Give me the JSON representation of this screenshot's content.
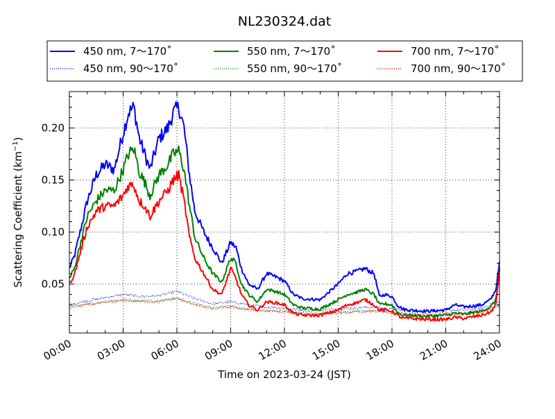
{
  "chart_data": {
    "type": "line",
    "title": "NL230324.dat",
    "xlabel": "Time on 2023-03-24 (JST)",
    "ylabel_prefix": "Scattering Coefficient (km",
    "ylabel_sup": "−1",
    "ylabel_suffix": ")",
    "xlim": [
      0,
      24
    ],
    "ylim": [
      0.003,
      0.235
    ],
    "xticks": [
      0,
      3,
      6,
      9,
      12,
      15,
      18,
      21,
      24
    ],
    "xtick_labels": [
      "00:00",
      "03:00",
      "06:00",
      "09:00",
      "12:00",
      "15:00",
      "18:00",
      "21:00",
      "24:00"
    ],
    "yticks": [
      0.05,
      0.1,
      0.15,
      0.2
    ],
    "ytick_labels": [
      "0.05",
      "0.10",
      "0.15",
      "0.20"
    ],
    "grid": true,
    "legend_position": "top, above plot",
    "series": [
      {
        "name": "450 nm, 7～170˚",
        "color": "#0000ff",
        "style": "solid",
        "x": [
          0,
          0.3,
          0.6,
          1.0,
          1.5,
          2.0,
          2.5,
          3.0,
          3.3,
          3.6,
          3.9,
          4.2,
          4.5,
          5.0,
          5.5,
          5.8,
          6.1,
          6.4,
          6.7,
          7.0,
          7.5,
          8.0,
          8.5,
          9.0,
          9.3,
          9.6,
          10.0,
          10.5,
          11.0,
          11.5,
          12.0,
          12.5,
          13.0,
          14.0,
          15.0,
          15.5,
          16.0,
          16.5,
          17.0,
          17.3,
          17.6,
          18.0,
          18.3,
          18.6,
          19.0,
          20.0,
          21.0,
          21.5,
          22.0,
          23.0,
          23.5,
          23.8,
          24.0
        ],
        "y": [
          0.065,
          0.078,
          0.1,
          0.13,
          0.155,
          0.165,
          0.16,
          0.195,
          0.215,
          0.22,
          0.19,
          0.175,
          0.16,
          0.19,
          0.2,
          0.215,
          0.22,
          0.2,
          0.155,
          0.12,
          0.1,
          0.085,
          0.07,
          0.09,
          0.085,
          0.065,
          0.05,
          0.045,
          0.06,
          0.057,
          0.053,
          0.04,
          0.036,
          0.035,
          0.05,
          0.06,
          0.062,
          0.065,
          0.06,
          0.038,
          0.04,
          0.038,
          0.03,
          0.026,
          0.025,
          0.024,
          0.025,
          0.03,
          0.028,
          0.03,
          0.035,
          0.045,
          0.07
        ]
      },
      {
        "name": "450 nm, 90～170˚",
        "color": "#0000ff",
        "style": "dotted",
        "x": [
          0,
          1,
          2,
          3,
          4,
          5,
          6,
          7,
          8,
          9,
          10,
          11,
          12,
          13,
          14,
          15,
          16,
          17,
          18,
          19,
          20,
          21,
          22,
          23,
          24
        ],
        "y": [
          0.03,
          0.034,
          0.037,
          0.04,
          0.038,
          0.039,
          0.043,
          0.036,
          0.031,
          0.033,
          0.03,
          0.028,
          0.027,
          0.025,
          0.025,
          0.026,
          0.027,
          0.028,
          0.026,
          0.024,
          0.024,
          0.025,
          0.025,
          0.027,
          0.033
        ]
      },
      {
        "name": "550 nm, 7～170˚",
        "color": "#008000",
        "style": "solid",
        "x": [
          0,
          0.3,
          0.6,
          1.0,
          1.5,
          2.0,
          2.5,
          3.0,
          3.3,
          3.6,
          3.9,
          4.2,
          4.5,
          5.0,
          5.5,
          5.8,
          6.1,
          6.4,
          6.7,
          7.0,
          7.5,
          8.0,
          8.5,
          9.0,
          9.3,
          9.6,
          10.0,
          10.5,
          11.0,
          11.5,
          12.0,
          12.5,
          13.0,
          14.0,
          15.0,
          15.5,
          16.0,
          16.5,
          17.0,
          17.3,
          17.6,
          18.0,
          18.3,
          18.6,
          19.0,
          20.0,
          21.0,
          21.5,
          22.0,
          23.0,
          23.5,
          23.8,
          24.0
        ],
        "y": [
          0.055,
          0.066,
          0.088,
          0.115,
          0.13,
          0.14,
          0.14,
          0.16,
          0.175,
          0.18,
          0.158,
          0.148,
          0.135,
          0.155,
          0.165,
          0.175,
          0.178,
          0.16,
          0.125,
          0.095,
          0.075,
          0.06,
          0.052,
          0.075,
          0.07,
          0.05,
          0.04,
          0.033,
          0.045,
          0.043,
          0.04,
          0.03,
          0.027,
          0.026,
          0.035,
          0.04,
          0.042,
          0.045,
          0.04,
          0.03,
          0.031,
          0.03,
          0.023,
          0.02,
          0.02,
          0.019,
          0.02,
          0.022,
          0.021,
          0.024,
          0.028,
          0.035,
          0.065
        ]
      },
      {
        "name": "550 nm, 90～170˚",
        "color": "#008000",
        "style": "dotted",
        "x": [
          0,
          1,
          2,
          3,
          4,
          5,
          6,
          7,
          8,
          9,
          10,
          11,
          12,
          13,
          14,
          15,
          16,
          17,
          18,
          19,
          20,
          21,
          22,
          23,
          24
        ],
        "y": [
          0.028,
          0.031,
          0.033,
          0.035,
          0.034,
          0.034,
          0.037,
          0.031,
          0.027,
          0.029,
          0.026,
          0.025,
          0.024,
          0.022,
          0.022,
          0.023,
          0.024,
          0.025,
          0.023,
          0.021,
          0.021,
          0.022,
          0.022,
          0.024,
          0.03
        ]
      },
      {
        "name": "700 nm, 7～170˚",
        "color": "#ff0000",
        "style": "solid",
        "x": [
          0,
          0.3,
          0.6,
          1.0,
          1.5,
          2.0,
          2.5,
          3.0,
          3.3,
          3.6,
          3.9,
          4.2,
          4.5,
          5.0,
          5.5,
          5.8,
          6.1,
          6.4,
          6.7,
          7.0,
          7.5,
          8.0,
          8.5,
          9.0,
          9.3,
          9.6,
          10.0,
          10.5,
          11.0,
          11.5,
          12.0,
          12.5,
          13.0,
          14.0,
          15.0,
          15.5,
          16.0,
          16.5,
          17.0,
          17.3,
          17.6,
          18.0,
          18.3,
          18.6,
          19.0,
          20.0,
          21.0,
          21.5,
          22.0,
          23.0,
          23.5,
          23.8,
          24.0
        ],
        "y": [
          0.05,
          0.06,
          0.08,
          0.105,
          0.12,
          0.125,
          0.125,
          0.135,
          0.145,
          0.145,
          0.13,
          0.125,
          0.115,
          0.13,
          0.14,
          0.15,
          0.155,
          0.13,
          0.095,
          0.075,
          0.06,
          0.045,
          0.04,
          0.065,
          0.055,
          0.04,
          0.03,
          0.025,
          0.033,
          0.032,
          0.03,
          0.022,
          0.02,
          0.02,
          0.025,
          0.03,
          0.032,
          0.035,
          0.03,
          0.025,
          0.025,
          0.024,
          0.02,
          0.017,
          0.017,
          0.016,
          0.016,
          0.018,
          0.017,
          0.02,
          0.023,
          0.03,
          0.065
        ]
      },
      {
        "name": "700 nm, 90～170˚",
        "color": "#ff0000",
        "style": "dotted",
        "x": [
          0,
          1,
          2,
          3,
          4,
          5,
          6,
          7,
          8,
          9,
          10,
          11,
          12,
          13,
          14,
          15,
          16,
          17,
          18,
          19,
          20,
          21,
          22,
          23,
          24
        ],
        "y": [
          0.027,
          0.03,
          0.032,
          0.034,
          0.033,
          0.033,
          0.036,
          0.03,
          0.026,
          0.028,
          0.025,
          0.024,
          0.023,
          0.021,
          0.021,
          0.022,
          0.023,
          0.024,
          0.022,
          0.02,
          0.02,
          0.021,
          0.021,
          0.023,
          0.029
        ]
      }
    ]
  }
}
